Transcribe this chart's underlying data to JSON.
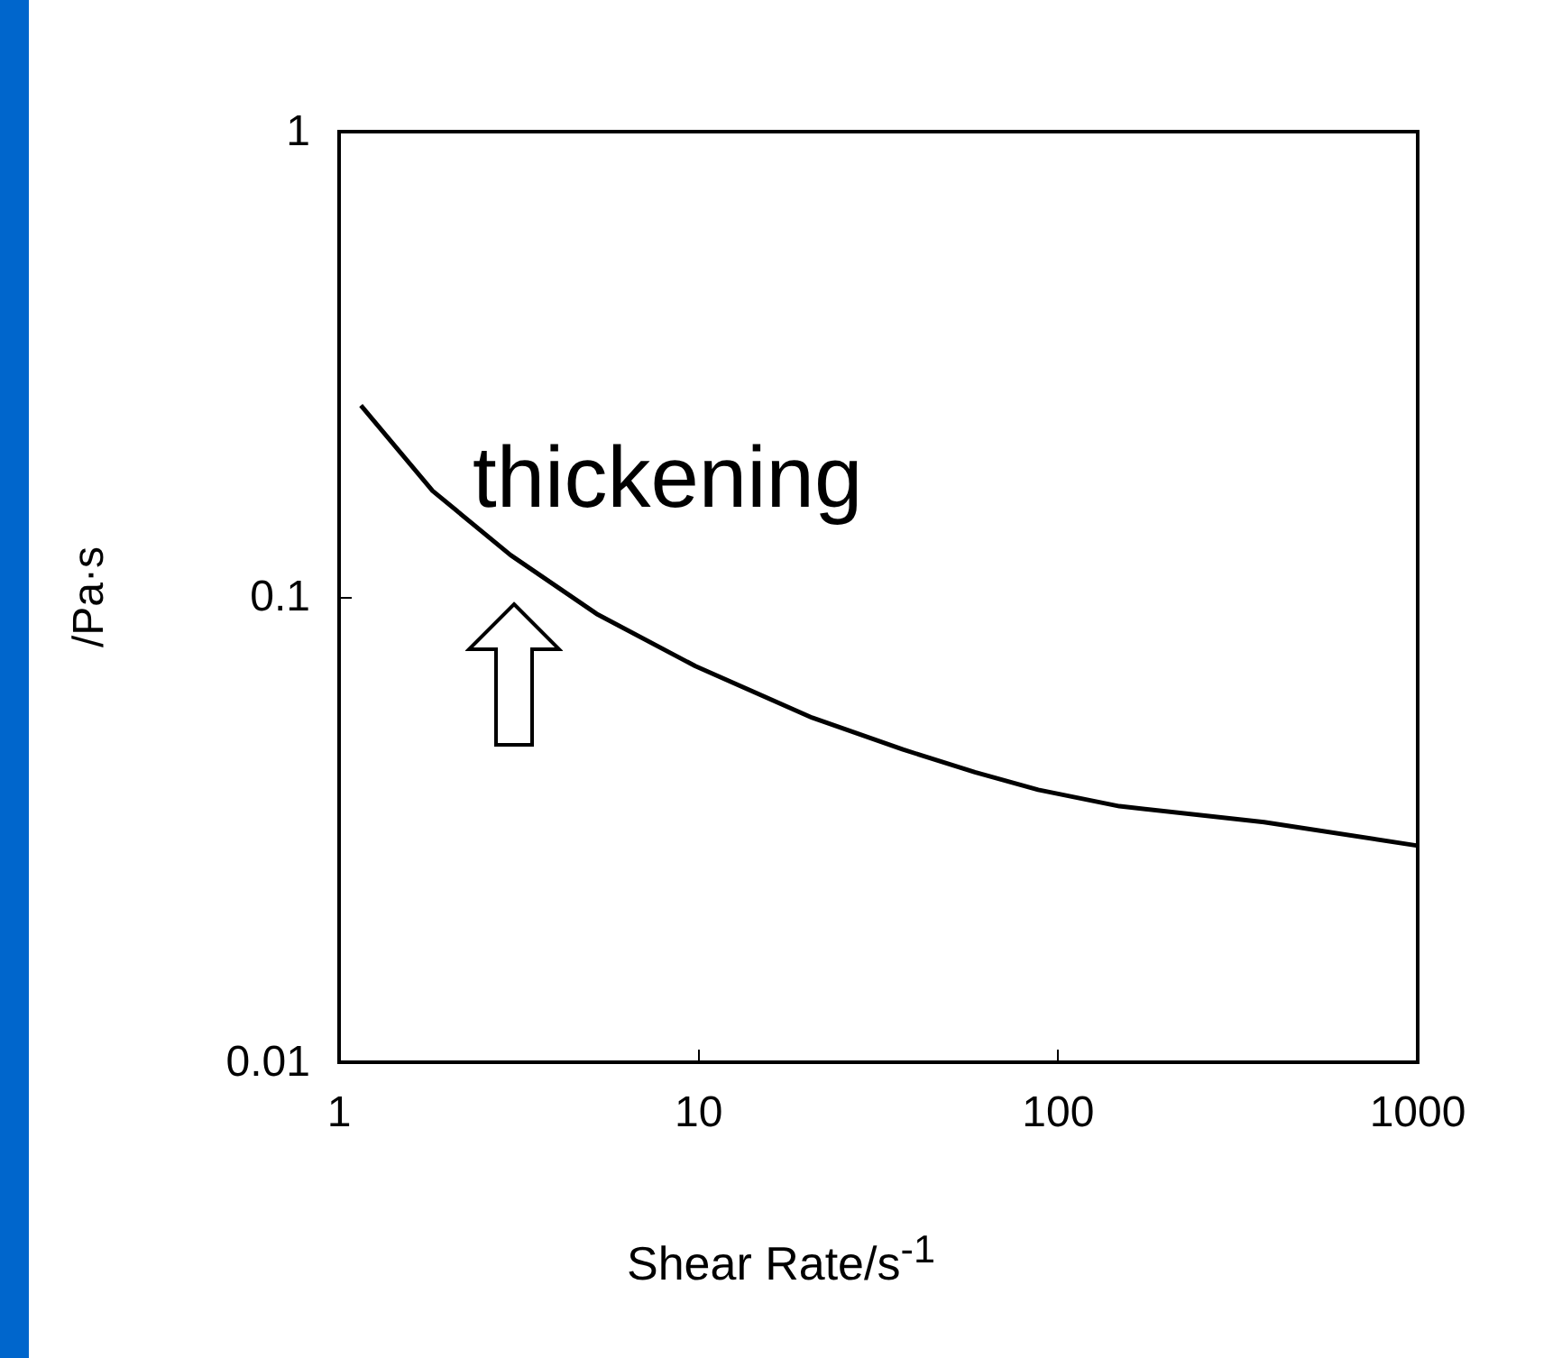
{
  "chart_data": {
    "type": "line",
    "xlabel": "Shear Rate/s$^{-1}$",
    "ylabel": "/Pa·s",
    "annotations": [
      "thickening"
    ],
    "x": [
      1.15,
      1.82,
      3.0,
      5.2,
      9.8,
      20.7,
      37,
      58.7,
      88,
      148,
      374,
      1000
    ],
    "series": [
      {
        "color": "#000000",
        "values": [
          0.258,
          0.169,
          0.123,
          0.092,
          0.071,
          0.055,
          0.047,
          0.042,
          0.0385,
          0.0355,
          0.0328,
          0.0292
        ]
      }
    ],
    "xlim": [
      1,
      1000
    ],
    "ylim": [
      0.01,
      1
    ],
    "xticks": [
      1,
      10,
      100,
      1000
    ],
    "yticks": [
      0.01,
      0.1,
      1
    ],
    "log": "xy",
    "grid": false,
    "marker": "none",
    "line_style": "solid"
  }
}
